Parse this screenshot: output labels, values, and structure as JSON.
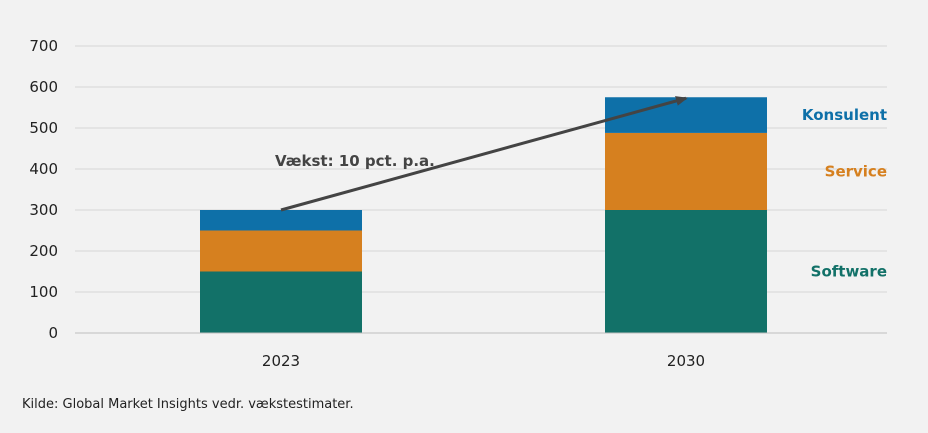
{
  "chart_data": {
    "type": "bar",
    "stacked": true,
    "categories": [
      "2023",
      "2030"
    ],
    "series": [
      {
        "name": "Software",
        "values": [
          150,
          300
        ],
        "color": "#127168"
      },
      {
        "name": "Service",
        "values": [
          100,
          188
        ],
        "color": "#d6801f"
      },
      {
        "name": "Konsulent",
        "values": [
          50,
          87
        ],
        "color": "#0e70a8"
      }
    ],
    "ylim": [
      0,
      700
    ],
    "yticks": [
      "0",
      "100",
      "200",
      "300",
      "400",
      "500",
      "600",
      "700"
    ],
    "grid": true,
    "legend_placement": "right, beside top bar",
    "annotation": "Vækst: 10 pct. p.a.",
    "arrow": {
      "from": {
        "x": "2023",
        "y": 300
      },
      "to": {
        "x": "2030",
        "y": 575
      }
    }
  },
  "source": "Kilde: Global Market Insights vedr. vækstestimater."
}
